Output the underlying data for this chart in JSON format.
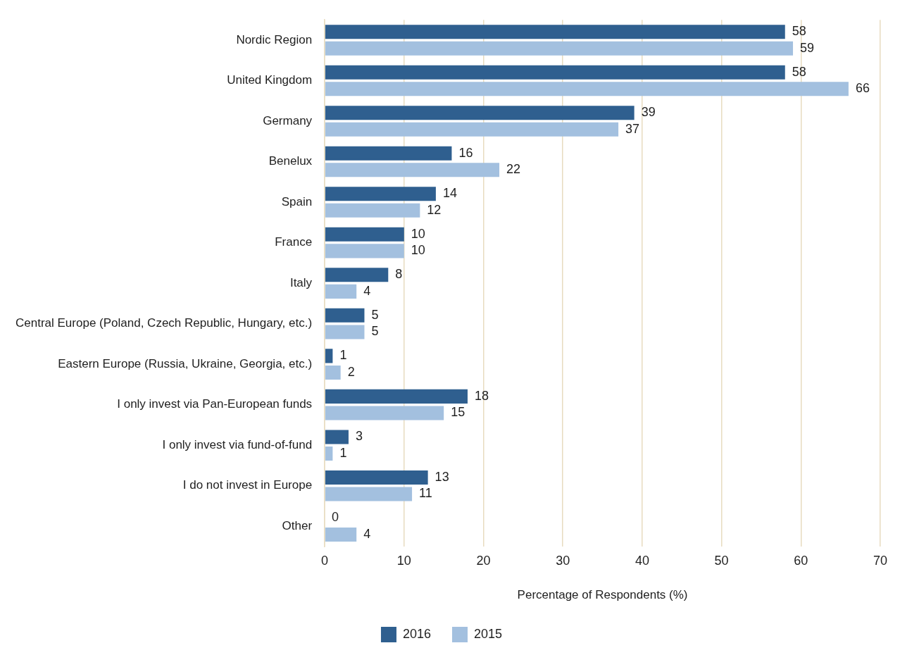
{
  "chart_data": {
    "type": "bar",
    "orientation": "horizontal",
    "categories": [
      "Nordic Region",
      "United Kingdom",
      "Germany",
      "Benelux",
      "Spain",
      "France",
      "Italy",
      "Central Europe (Poland, Czech Republic, Hungary, etc.)",
      "Eastern Europe (Russia, Ukraine, Georgia, etc.)",
      "I only invest via Pan-European funds",
      "I only invest via fund-of-fund",
      "I do not invest in Europe",
      "Other"
    ],
    "series": [
      {
        "name": "2016",
        "color": "#2f5f8f",
        "values": [
          58,
          58,
          39,
          16,
          14,
          10,
          8,
          5,
          1,
          18,
          3,
          13,
          0
        ]
      },
      {
        "name": "2015",
        "color": "#a3c0df",
        "values": [
          59,
          66,
          37,
          22,
          12,
          10,
          4,
          5,
          2,
          15,
          1,
          11,
          4
        ]
      }
    ],
    "xlabel": "Percentage of Respondents (%)",
    "xlim": [
      0,
      70
    ],
    "xticks": [
      0,
      10,
      20,
      30,
      40,
      50,
      60,
      70
    ],
    "grid": "x",
    "legend": "bottom",
    "data_labels": true
  }
}
